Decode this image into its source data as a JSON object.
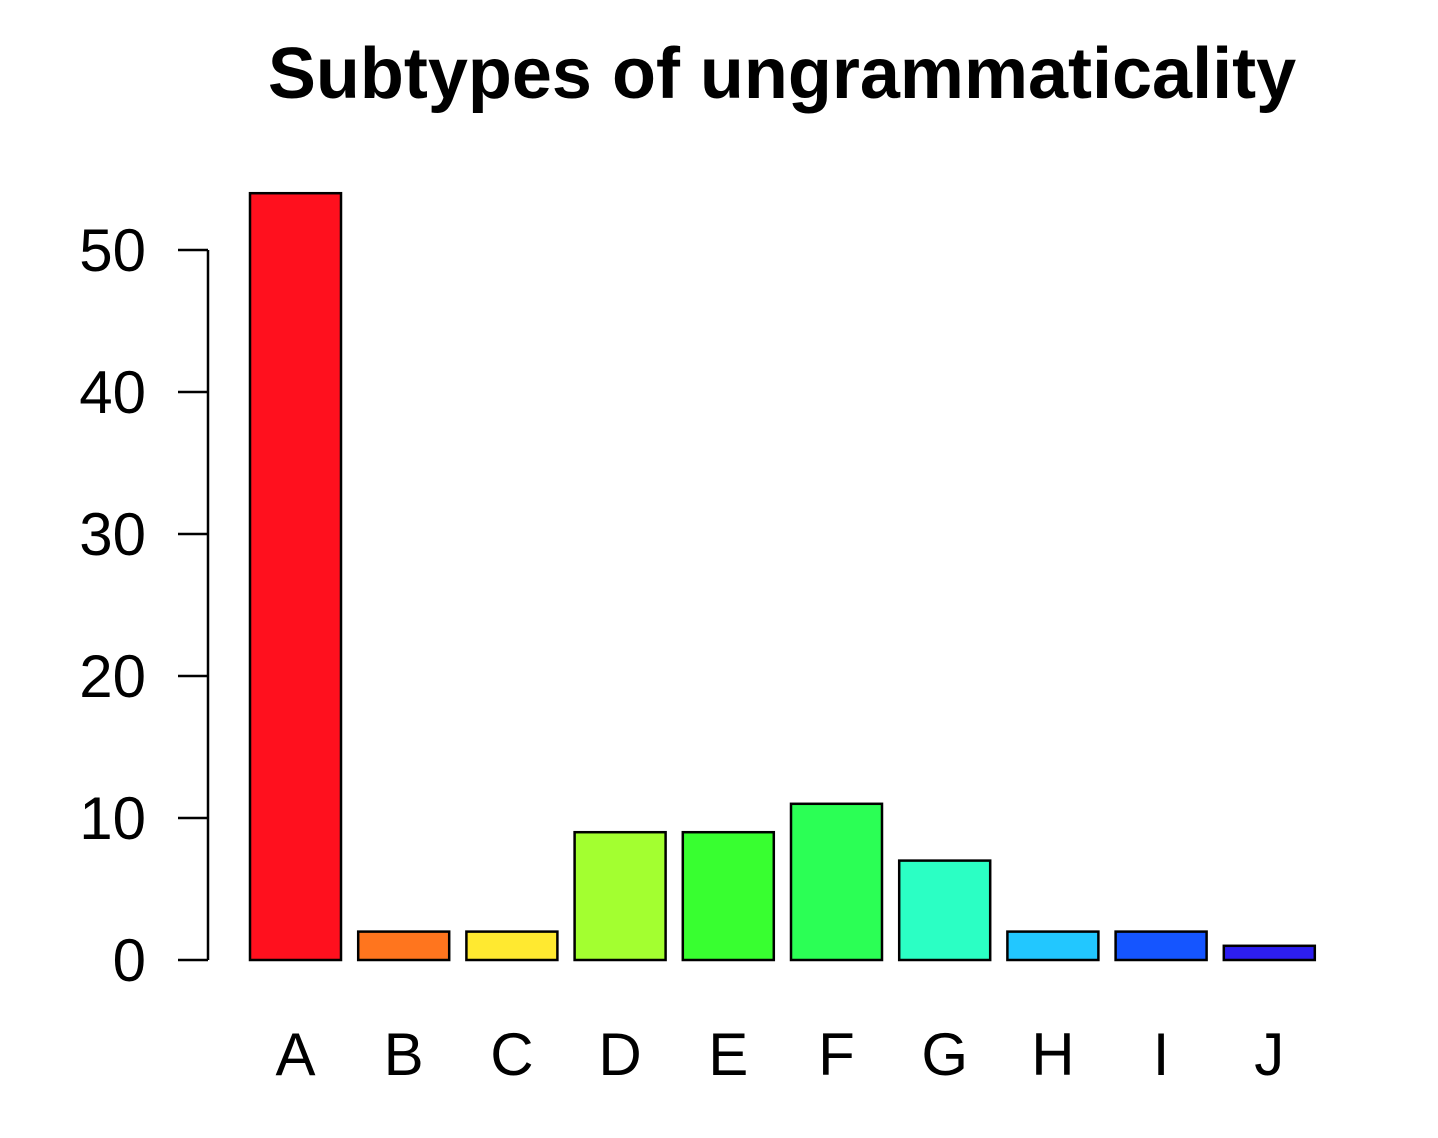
{
  "chart_data": {
    "type": "bar",
    "title": "Subtypes of ungrammaticality",
    "xlabel": "",
    "ylabel": "",
    "categories": [
      "A",
      "B",
      "C",
      "D",
      "E",
      "F",
      "G",
      "H",
      "I",
      "J"
    ],
    "values": [
      54,
      2,
      2,
      9,
      9,
      11,
      7,
      2,
      2,
      1
    ],
    "colors": [
      "#FF101E",
      "#FF751E",
      "#FFE930",
      "#A3FF30",
      "#38FF30",
      "#2BFF55",
      "#2BFFC4",
      "#22C7FF",
      "#1555FF",
      "#2D1EF0"
    ],
    "ylim": [
      0,
      54
    ],
    "yticks": [
      0,
      10,
      20,
      30,
      40,
      50
    ],
    "grid": false,
    "legend": "none"
  }
}
